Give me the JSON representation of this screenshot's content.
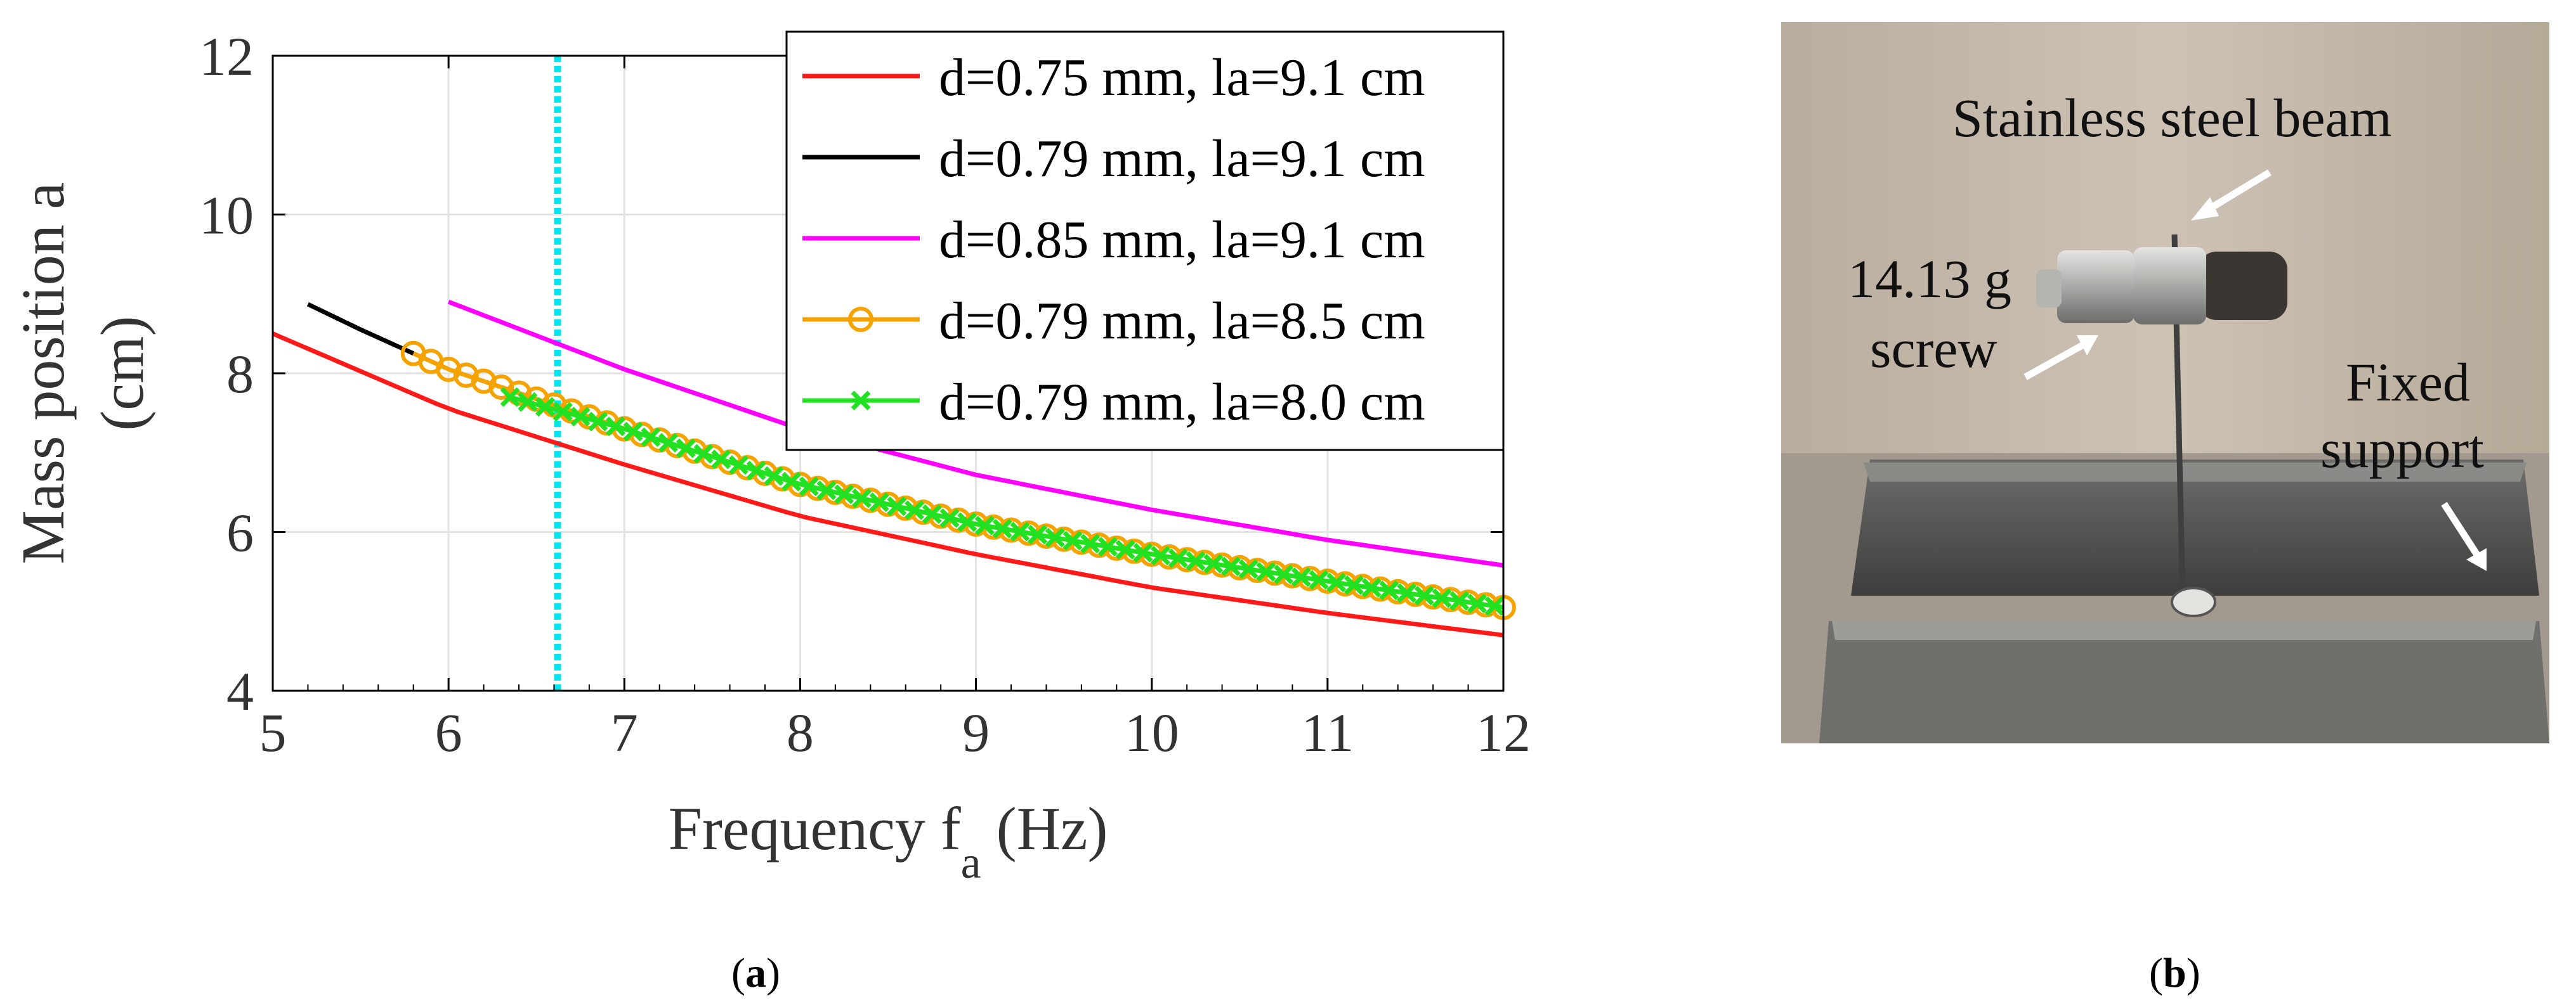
{
  "chart_data": {
    "type": "line",
    "xlabel": "Frequency f",
    "xlabel_sub": "a",
    "xlabel_unit": "(Hz)",
    "ylabel_line1": "Mass position a",
    "ylabel_line2": "(cm)",
    "xlim": [
      5,
      12
    ],
    "ylim": [
      4,
      12
    ],
    "xticks": [
      5,
      6,
      7,
      8,
      9,
      10,
      11,
      12
    ],
    "yticks": [
      4,
      6,
      8,
      10,
      12
    ],
    "grid": true,
    "legend_position": "top-right",
    "vertical_line": {
      "x": 6.62,
      "color": "#00e5ee",
      "style": "dotted"
    },
    "series": [
      {
        "name": "d=0.75 mm, la=9.1 cm",
        "color": "#ff1a1a",
        "marker": "none",
        "x": [
          5,
          6,
          7,
          8,
          9,
          10,
          11,
          12
        ],
        "y": [
          8.5,
          7.55,
          6.85,
          6.2,
          5.72,
          5.3,
          4.98,
          4.7
        ]
      },
      {
        "name": "d=0.79 mm, la=9.1 cm",
        "color": "#000000",
        "marker": "none",
        "x": [
          5.2,
          5.5,
          5.8
        ],
        "y": [
          8.87,
          8.55,
          8.25
        ]
      },
      {
        "name": "d=0.85 mm, la=9.1 cm",
        "color": "#ff00ff",
        "marker": "none",
        "x": [
          6,
          7,
          8,
          9,
          10,
          11,
          12
        ],
        "y": [
          8.9,
          8.05,
          7.3,
          6.72,
          6.28,
          5.9,
          5.58
        ]
      },
      {
        "name": "d=0.79 mm, la=8.5 cm",
        "color": "#f5a300",
        "marker": "circle",
        "x": [
          5.8,
          6,
          7,
          8,
          9,
          10,
          11,
          12
        ],
        "y": [
          8.25,
          8.05,
          7.3,
          6.6,
          6.1,
          5.72,
          5.38,
          5.05
        ]
      },
      {
        "name": "d=0.79 mm, la=8.0 cm",
        "color": "#22e022",
        "marker": "cross",
        "x": [
          6.35,
          7,
          8,
          9,
          10,
          11,
          12
        ],
        "y": [
          7.7,
          7.3,
          6.6,
          6.1,
          5.72,
          5.38,
          5.05
        ]
      }
    ]
  },
  "captions": {
    "a": "a",
    "b": "b"
  },
  "photo": {
    "label_beam": "Stainless steel beam",
    "label_screw_1": "14.13 g",
    "label_screw_2": "screw",
    "label_support_1": "Fixed",
    "label_support_2": "support"
  }
}
